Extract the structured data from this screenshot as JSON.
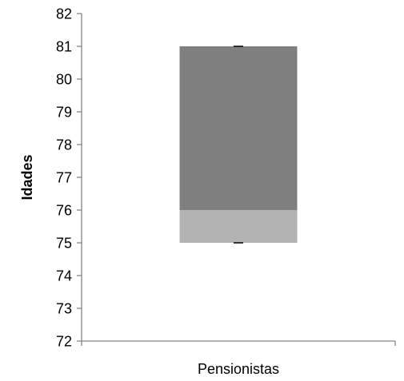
{
  "chart_data": {
    "type": "box",
    "categories": [
      "Pensionistas"
    ],
    "ylabel": "Idades",
    "xlabel": "",
    "ylim": [
      72,
      82
    ],
    "yticks": [
      72,
      73,
      74,
      75,
      76,
      77,
      78,
      79,
      80,
      81,
      82
    ],
    "boxes": [
      {
        "category": "Pensionistas",
        "min": 75,
        "q1": 75,
        "median": 76,
        "q3": 81,
        "max": 81
      }
    ],
    "grid": false,
    "colors": {
      "lower_segment": "#b3b3b3",
      "upper_segment": "#7f7f7f",
      "axis": "#868686",
      "whisker": "#000000"
    }
  }
}
